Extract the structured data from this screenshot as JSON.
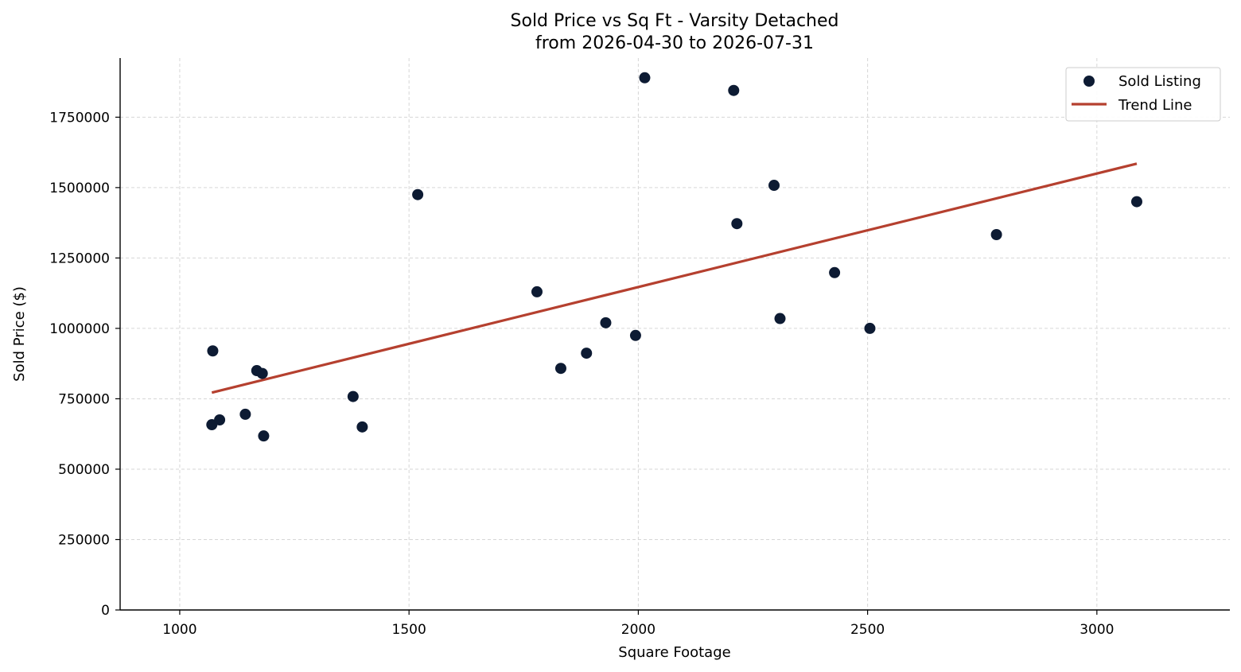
{
  "chart_data": {
    "type": "scatter",
    "title": "Sold Price vs Sq Ft - Varsity Detached",
    "subtitle": "from 2026-04-30 to 2026-07-31",
    "xlabel": "Square Footage",
    "ylabel": "Sold Price ($)",
    "xlim": [
      870,
      3290
    ],
    "ylim": [
      0,
      1960000
    ],
    "xticks": [
      1000,
      1500,
      2000,
      2500,
      3000
    ],
    "yticks": [
      0,
      250000,
      500000,
      750000,
      1000000,
      1250000,
      1500000,
      1750000
    ],
    "grid": true,
    "legend_position": "top-right",
    "series": [
      {
        "name": "Sold Listing",
        "kind": "scatter",
        "color": "#0d1b33",
        "points": [
          {
            "x": 1070,
            "y": 658000
          },
          {
            "x": 1072,
            "y": 920000
          },
          {
            "x": 1087,
            "y": 675000
          },
          {
            "x": 1143,
            "y": 695000
          },
          {
            "x": 1168,
            "y": 850000
          },
          {
            "x": 1180,
            "y": 840000
          },
          {
            "x": 1183,
            "y": 618000
          },
          {
            "x": 1378,
            "y": 758000
          },
          {
            "x": 1398,
            "y": 650000
          },
          {
            "x": 1519,
            "y": 1475000
          },
          {
            "x": 1779,
            "y": 1130000
          },
          {
            "x": 1831,
            "y": 858000
          },
          {
            "x": 1887,
            "y": 912000
          },
          {
            "x": 1929,
            "y": 1020000
          },
          {
            "x": 1994,
            "y": 975000
          },
          {
            "x": 2014,
            "y": 1890000
          },
          {
            "x": 2208,
            "y": 1845000
          },
          {
            "x": 2215,
            "y": 1372000
          },
          {
            "x": 2296,
            "y": 1508000
          },
          {
            "x": 2309,
            "y": 1035000
          },
          {
            "x": 2428,
            "y": 1198000
          },
          {
            "x": 2505,
            "y": 1000000
          },
          {
            "x": 2781,
            "y": 1333000
          },
          {
            "x": 3087,
            "y": 1450000
          }
        ]
      },
      {
        "name": "Trend Line",
        "kind": "line",
        "color": "#b5402f",
        "points": [
          {
            "x": 1070,
            "y": 772000
          },
          {
            "x": 3087,
            "y": 1585000
          }
        ]
      }
    ]
  }
}
